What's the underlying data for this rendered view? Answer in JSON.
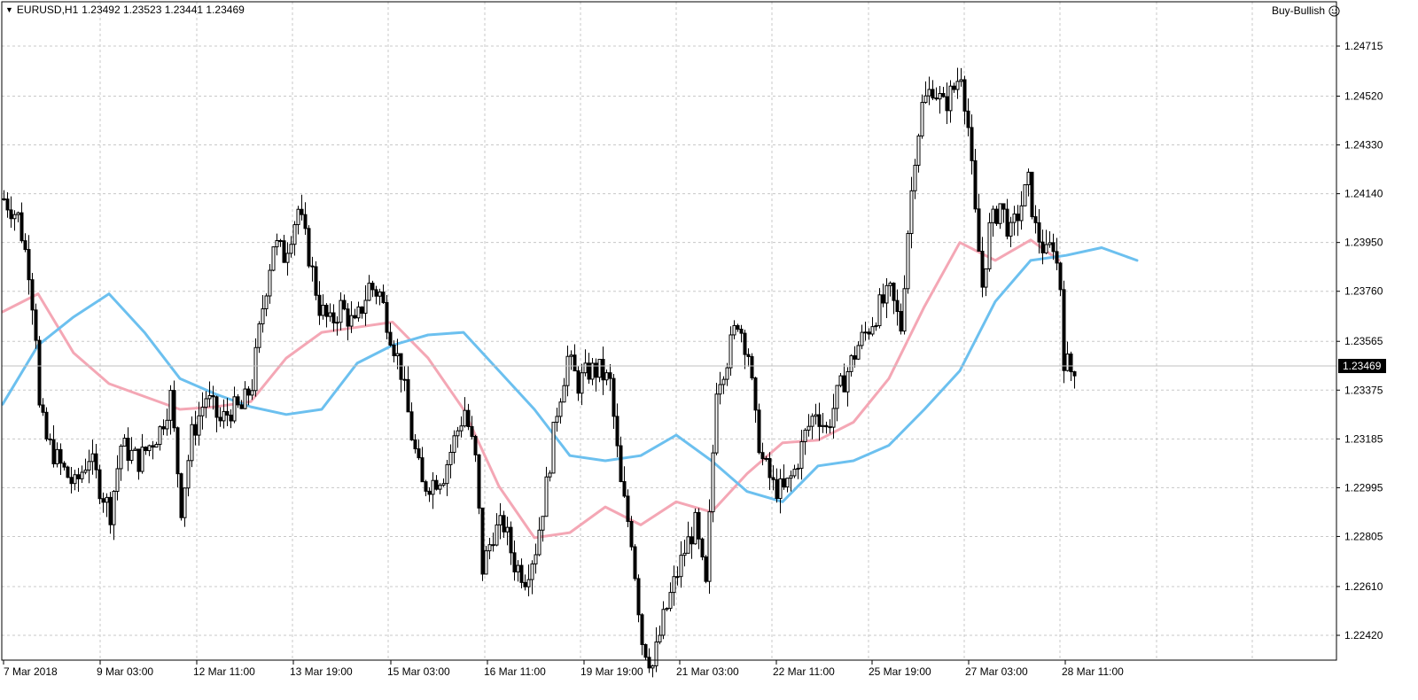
{
  "header": {
    "symbol_timeframe": "EURUSD,H1",
    "quotes": "1.23492 1.23523 1.23441 1.23469"
  },
  "expert": {
    "label": "Buy-Bullish",
    "icon": "smiley-icon"
  },
  "colors": {
    "background": "#ffffff",
    "grid": "#c8c8c8",
    "candle": "#000000",
    "ma_fast": "#f4a7b5",
    "ma_slow": "#6cc0ef",
    "price_line": "#c0c0c0",
    "price_label_bg": "#000000",
    "price_label_text": "#ffffff"
  },
  "chart_data": {
    "type": "candlestick",
    "symbol": "EURUSD",
    "timeframe": "H1",
    "grid": true,
    "y_ticks": [
      "1.24715",
      "1.24520",
      "1.24330",
      "1.24140",
      "1.23950",
      "1.23760",
      "1.23565",
      "1.23375",
      "1.23185",
      "1.22995",
      "1.22805",
      "1.22610",
      "1.22420"
    ],
    "ylim": [
      1.2232,
      1.2484
    ],
    "x_ticks": [
      "7 Mar 2018",
      "9 Mar 03:00",
      "12 Mar 11:00",
      "13 Mar 19:00",
      "15 Mar 03:00",
      "16 Mar 11:00",
      "19 Mar 19:00",
      "21 Mar 03:00",
      "22 Mar 11:00",
      "25 Mar 19:00",
      "27 Mar 03:00",
      "28 Mar 11:00"
    ],
    "current_price": "1.23469",
    "close_path": [
      {
        "i": 0,
        "p": 1.2412
      },
      {
        "i": 4,
        "p": 1.2405
      },
      {
        "i": 7,
        "p": 1.2385
      },
      {
        "i": 9,
        "p": 1.236
      },
      {
        "i": 10,
        "p": 1.233
      },
      {
        "i": 12,
        "p": 1.2318
      },
      {
        "i": 16,
        "p": 1.2308
      },
      {
        "i": 20,
        "p": 1.23
      },
      {
        "i": 24,
        "p": 1.2312
      },
      {
        "i": 27,
        "p": 1.23
      },
      {
        "i": 30,
        "p": 1.229
      },
      {
        "i": 33,
        "p": 1.2316
      },
      {
        "i": 38,
        "p": 1.231
      },
      {
        "i": 44,
        "p": 1.2322
      },
      {
        "i": 47,
        "p": 1.2335
      },
      {
        "i": 50,
        "p": 1.2292
      },
      {
        "i": 53,
        "p": 1.232
      },
      {
        "i": 57,
        "p": 1.2335
      },
      {
        "i": 61,
        "p": 1.2325
      },
      {
        "i": 64,
        "p": 1.233
      },
      {
        "i": 67,
        "p": 1.233
      },
      {
        "i": 70,
        "p": 1.234
      },
      {
        "i": 73,
        "p": 1.237
      },
      {
        "i": 76,
        "p": 1.2395
      },
      {
        "i": 79,
        "p": 1.239
      },
      {
        "i": 83,
        "p": 1.2408
      },
      {
        "i": 86,
        "p": 1.239
      },
      {
        "i": 89,
        "p": 1.237
      },
      {
        "i": 92,
        "p": 1.2363
      },
      {
        "i": 95,
        "p": 1.237
      },
      {
        "i": 99,
        "p": 1.2362
      },
      {
        "i": 103,
        "p": 1.2378
      },
      {
        "i": 106,
        "p": 1.2375
      },
      {
        "i": 109,
        "p": 1.236
      },
      {
        "i": 112,
        "p": 1.2345
      },
      {
        "i": 115,
        "p": 1.232
      },
      {
        "i": 118,
        "p": 1.23
      },
      {
        "i": 121,
        "p": 1.2302
      },
      {
        "i": 124,
        "p": 1.2305
      },
      {
        "i": 127,
        "p": 1.2318
      },
      {
        "i": 130,
        "p": 1.233
      },
      {
        "i": 133,
        "p": 1.231
      },
      {
        "i": 135,
        "p": 1.2268
      },
      {
        "i": 138,
        "p": 1.2282
      },
      {
        "i": 141,
        "p": 1.2285
      },
      {
        "i": 144,
        "p": 1.227
      },
      {
        "i": 147,
        "p": 1.2265
      },
      {
        "i": 150,
        "p": 1.2276
      },
      {
        "i": 153,
        "p": 1.23
      },
      {
        "i": 156,
        "p": 1.233
      },
      {
        "i": 159,
        "p": 1.235
      },
      {
        "i": 162,
        "p": 1.234
      },
      {
        "i": 165,
        "p": 1.2345
      },
      {
        "i": 168,
        "p": 1.2345
      },
      {
        "i": 171,
        "p": 1.234
      },
      {
        "i": 174,
        "p": 1.23
      },
      {
        "i": 177,
        "p": 1.228
      },
      {
        "i": 180,
        "p": 1.224
      },
      {
        "i": 183,
        "p": 1.223
      },
      {
        "i": 186,
        "p": 1.2248
      },
      {
        "i": 189,
        "p": 1.2262
      },
      {
        "i": 192,
        "p": 1.2275
      },
      {
        "i": 195,
        "p": 1.2285
      },
      {
        "i": 198,
        "p": 1.226
      },
      {
        "i": 201,
        "p": 1.234
      },
      {
        "i": 204,
        "p": 1.235
      },
      {
        "i": 207,
        "p": 1.2365
      },
      {
        "i": 210,
        "p": 1.2352
      },
      {
        "i": 212,
        "p": 1.2325
      },
      {
        "i": 214,
        "p": 1.231
      },
      {
        "i": 217,
        "p": 1.23
      },
      {
        "i": 220,
        "p": 1.2298
      },
      {
        "i": 223,
        "p": 1.2306
      },
      {
        "i": 226,
        "p": 1.232
      },
      {
        "i": 229,
        "p": 1.233
      },
      {
        "i": 232,
        "p": 1.2322
      },
      {
        "i": 235,
        "p": 1.2335
      },
      {
        "i": 238,
        "p": 1.2345
      },
      {
        "i": 241,
        "p": 1.2355
      },
      {
        "i": 244,
        "p": 1.2362
      },
      {
        "i": 247,
        "p": 1.237
      },
      {
        "i": 250,
        "p": 1.2375
      },
      {
        "i": 253,
        "p": 1.2362
      },
      {
        "i": 255,
        "p": 1.24
      },
      {
        "i": 257,
        "p": 1.243
      },
      {
        "i": 259,
        "p": 1.2448
      },
      {
        "i": 262,
        "p": 1.2456
      },
      {
        "i": 265,
        "p": 1.2448
      },
      {
        "i": 268,
        "p": 1.2455
      },
      {
        "i": 270,
        "p": 1.2462
      },
      {
        "i": 272,
        "p": 1.244
      },
      {
        "i": 274,
        "p": 1.2405
      },
      {
        "i": 276,
        "p": 1.2378
      },
      {
        "i": 278,
        "p": 1.24
      },
      {
        "i": 281,
        "p": 1.241
      },
      {
        "i": 284,
        "p": 1.2398
      },
      {
        "i": 287,
        "p": 1.241
      },
      {
        "i": 289,
        "p": 1.2418
      },
      {
        "i": 291,
        "p": 1.24
      },
      {
        "i": 294,
        "p": 1.239
      },
      {
        "i": 296,
        "p": 1.2395
      },
      {
        "i": 298,
        "p": 1.2378
      },
      {
        "i": 299,
        "p": 1.235
      },
      {
        "i": 301,
        "p": 1.2345
      },
      {
        "i": 302,
        "p": 1.2347
      }
    ],
    "series": [
      {
        "color": "#f4a7b5",
        "values": [
          [
            0,
            1.2368
          ],
          [
            10,
            1.2375
          ],
          [
            20,
            1.2352
          ],
          [
            30,
            1.234
          ],
          [
            40,
            1.2335
          ],
          [
            50,
            1.233
          ],
          [
            60,
            1.2331
          ],
          [
            70,
            1.2333
          ],
          [
            80,
            1.235
          ],
          [
            90,
            1.236
          ],
          [
            100,
            1.2362
          ],
          [
            110,
            1.2364
          ],
          [
            120,
            1.235
          ],
          [
            130,
            1.233
          ],
          [
            140,
            1.23
          ],
          [
            150,
            1.228
          ],
          [
            160,
            1.2282
          ],
          [
            170,
            1.2292
          ],
          [
            180,
            1.2285
          ],
          [
            190,
            1.2294
          ],
          [
            200,
            1.229
          ],
          [
            210,
            1.2305
          ],
          [
            220,
            1.2317
          ],
          [
            230,
            1.2318
          ],
          [
            240,
            1.2325
          ],
          [
            250,
            1.2342
          ],
          [
            260,
            1.237
          ],
          [
            270,
            1.2395
          ],
          [
            280,
            1.2388
          ],
          [
            290,
            1.2396
          ],
          [
            298,
            1.2388
          ]
        ]
      },
      {
        "color": "#6cc0ef",
        "values": [
          [
            0,
            1.2332
          ],
          [
            10,
            1.2355
          ],
          [
            20,
            1.2366
          ],
          [
            30,
            1.2375
          ],
          [
            40,
            1.236
          ],
          [
            50,
            1.2342
          ],
          [
            60,
            1.2336
          ],
          [
            70,
            1.2331
          ],
          [
            80,
            1.2328
          ],
          [
            90,
            1.233
          ],
          [
            100,
            1.2348
          ],
          [
            110,
            1.2355
          ],
          [
            120,
            1.2359
          ],
          [
            130,
            1.236
          ],
          [
            140,
            1.2345
          ],
          [
            150,
            1.233
          ],
          [
            160,
            1.2312
          ],
          [
            170,
            1.231
          ],
          [
            180,
            1.2312
          ],
          [
            190,
            1.232
          ],
          [
            200,
            1.231
          ],
          [
            210,
            1.2298
          ],
          [
            220,
            1.2294
          ],
          [
            230,
            1.2308
          ],
          [
            240,
            1.231
          ],
          [
            250,
            1.2316
          ],
          [
            260,
            1.233
          ],
          [
            270,
            1.2345
          ],
          [
            280,
            1.2372
          ],
          [
            290,
            1.2388
          ],
          [
            300,
            1.239
          ],
          [
            310,
            1.2393
          ],
          [
            320,
            1.2388
          ]
        ]
      }
    ]
  }
}
